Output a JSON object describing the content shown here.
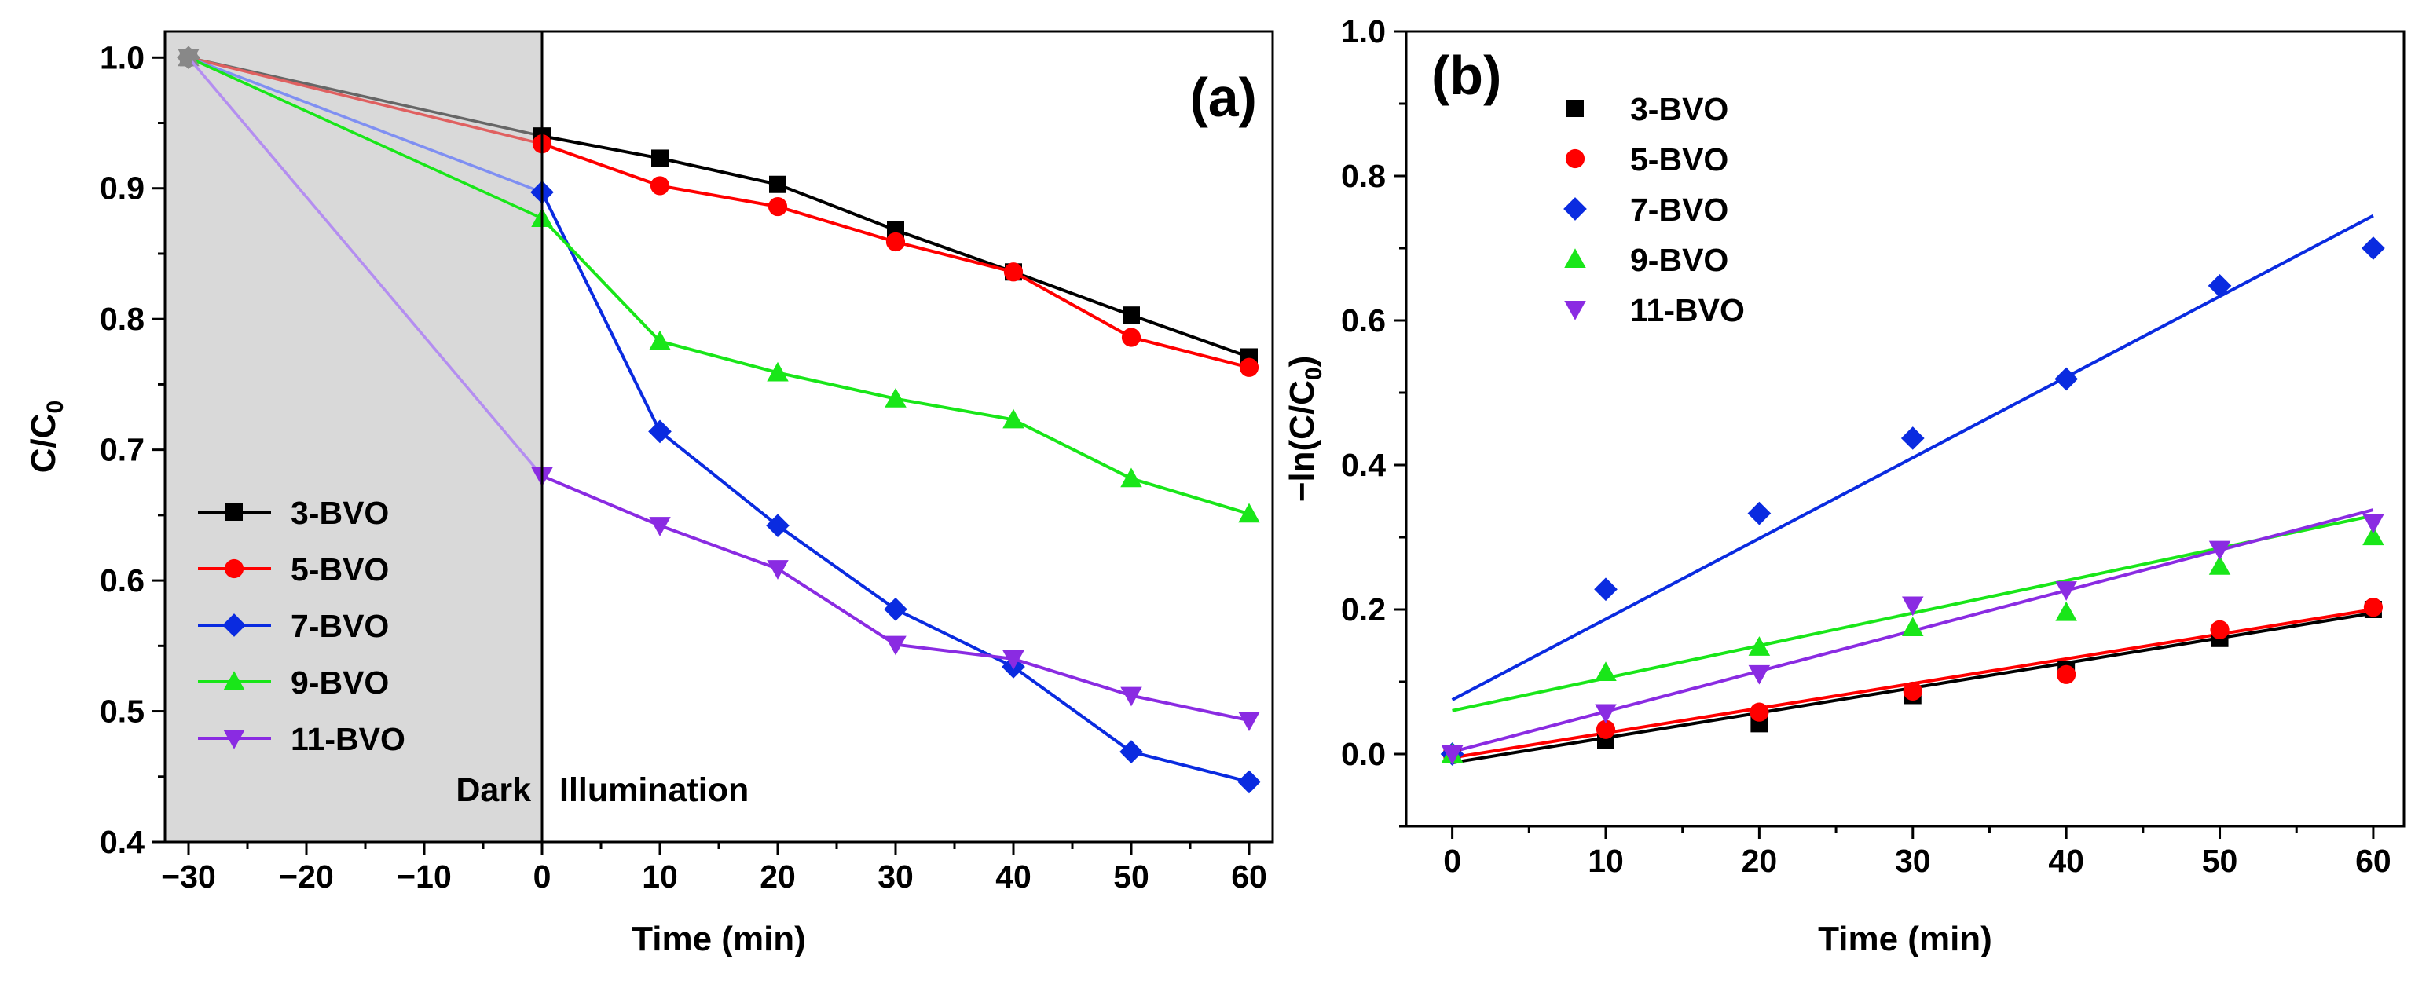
{
  "chart_data": [
    {
      "type": "line",
      "panel_label": "(a)",
      "xlabel": "Time (min)",
      "ylabel_main": "C/C",
      "ylabel_sub": "0",
      "xlim": [
        -32,
        62
      ],
      "ylim": [
        0.4,
        1.02
      ],
      "x_ticks": [
        "−30",
        "−20",
        "−10",
        "0",
        "10",
        "20",
        "30",
        "40",
        "50",
        "60"
      ],
      "y_ticks": [
        "0.4",
        "0.5",
        "0.6",
        "0.7",
        "0.8",
        "0.9",
        "1.0"
      ],
      "regions": {
        "dark_label": "Dark",
        "illumination_label": "Illumination",
        "dark_range": [
          -32,
          0
        ]
      },
      "x": [
        -30,
        0,
        10,
        20,
        30,
        40,
        50,
        60
      ],
      "series": [
        {
          "name": "3-BVO",
          "color": "#000000",
          "marker": "square",
          "values": [
            1.0,
            0.94,
            0.923,
            0.903,
            0.868,
            0.836,
            0.803,
            0.771
          ]
        },
        {
          "name": "5-BVO",
          "color": "#ff0000",
          "marker": "circle",
          "values": [
            1.0,
            0.934,
            0.902,
            0.886,
            0.859,
            0.836,
            0.786,
            0.763
          ]
        },
        {
          "name": "7-BVO",
          "color": "#0a2be0",
          "marker": "diamond",
          "values": [
            1.0,
            0.897,
            0.714,
            0.642,
            0.578,
            0.534,
            0.469,
            0.446
          ]
        },
        {
          "name": "9-BVO",
          "color": "#19e619",
          "marker": "triangle-up",
          "values": [
            1.0,
            0.877,
            0.783,
            0.759,
            0.739,
            0.723,
            0.678,
            0.651
          ]
        },
        {
          "name": "11-BVO",
          "color": "#8a2be2",
          "marker": "triangle-down",
          "values": [
            1.0,
            0.68,
            0.642,
            0.609,
            0.551,
            0.54,
            0.512,
            0.493
          ]
        }
      ]
    },
    {
      "type": "scatter",
      "panel_label": "(b)",
      "xlabel": "Time (min)",
      "ylabel_main": "−ln(C/C",
      "ylabel_sub": "0",
      "ylabel_end": ")",
      "xlim": [
        -3,
        62
      ],
      "ylim": [
        -0.1,
        1.0
      ],
      "x_ticks": [
        "0",
        "10",
        "20",
        "30",
        "40",
        "50",
        "60"
      ],
      "y_ticks": [
        "0.0",
        "0.2",
        "0.4",
        "0.6",
        "0.8",
        "1.0"
      ],
      "x": [
        0,
        10,
        20,
        30,
        40,
        50,
        60
      ],
      "series": [
        {
          "name": "3-BVO",
          "color": "#000000",
          "marker": "square",
          "values": [
            0.0,
            0.019,
            0.042,
            0.081,
            0.117,
            0.16,
            0.2
          ],
          "fit": [
            -0.012,
            0.195
          ]
        },
        {
          "name": "5-BVO",
          "color": "#ff0000",
          "marker": "circle",
          "values": [
            0.0,
            0.034,
            0.058,
            0.087,
            0.11,
            0.172,
            0.203
          ],
          "fit": [
            -0.005,
            0.2
          ]
        },
        {
          "name": "7-BVO",
          "color": "#0a2be0",
          "marker": "diamond",
          "values": [
            0.0,
            0.228,
            0.333,
            0.437,
            0.519,
            0.648,
            0.7
          ],
          "fit": [
            0.075,
            0.745
          ]
        },
        {
          "name": "9-BVO",
          "color": "#19e619",
          "marker": "triangle-up",
          "values": [
            0.0,
            0.113,
            0.148,
            0.175,
            0.196,
            0.26,
            0.301
          ],
          "fit": [
            0.06,
            0.33
          ]
        },
        {
          "name": "11-BVO",
          "color": "#8a2be2",
          "marker": "triangle-down",
          "values": [
            0.0,
            0.057,
            0.111,
            0.206,
            0.227,
            0.283,
            0.32
          ],
          "fit": [
            0.003,
            0.338
          ]
        }
      ]
    }
  ]
}
